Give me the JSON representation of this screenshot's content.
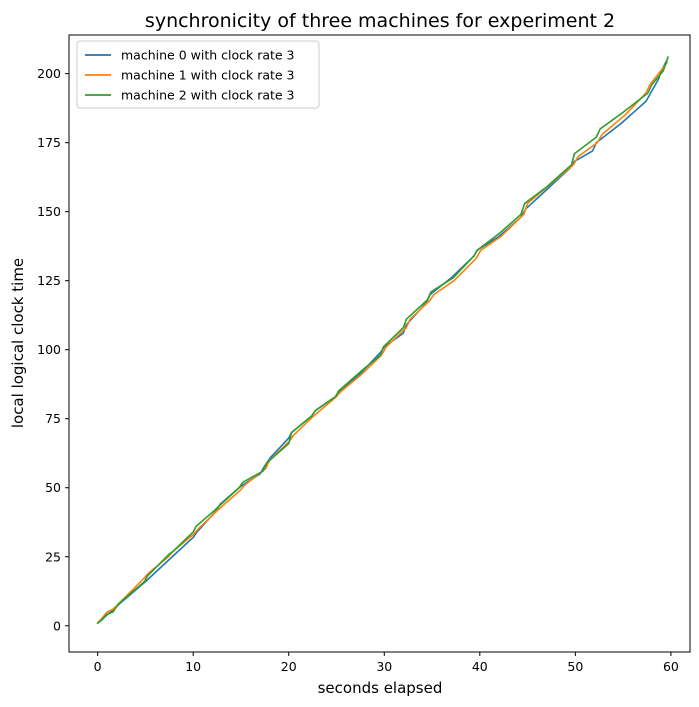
{
  "chart_data": {
    "type": "line",
    "title": "synchronicity of three machines for experiment 2",
    "xlabel": "seconds elapsed",
    "ylabel": "local logical clock time",
    "xlim": [
      -3,
      62
    ],
    "ylim": [
      -9.5,
      214
    ],
    "xticks": [
      0,
      10,
      20,
      30,
      40,
      50,
      60
    ],
    "yticks": [
      0,
      25,
      50,
      75,
      100,
      125,
      150,
      175,
      200
    ],
    "grid": false,
    "legend_position": "top-left",
    "series": [
      {
        "name": "machine 0 with clock rate 3",
        "color": "#1f77b4",
        "x": [
          0,
          0.4,
          1.0,
          1.7,
          2.3,
          5.0,
          7.5,
          7.8,
          10.0,
          10.4,
          12.5,
          12.8,
          14.8,
          15.2,
          17.0,
          17.5,
          18.1,
          20.0,
          20.3,
          22.4,
          22.8,
          24.9,
          25.3,
          27.4,
          29.6,
          30.0,
          32.0,
          32.3,
          34.4,
          34.8,
          37.0,
          39.4,
          39.7,
          42.0,
          44.3,
          44.8,
          47.0,
          49.5,
          49.8,
          51.8,
          52.2,
          54.8,
          57.4,
          58.7,
          59.0,
          59.6
        ],
        "y": [
          1,
          2,
          4,
          6,
          8,
          16,
          24,
          25,
          32,
          34,
          42,
          44,
          50,
          51,
          55,
          58,
          61,
          68,
          70,
          76,
          78,
          83,
          85,
          91,
          99,
          101,
          106,
          109,
          117,
          120,
          126,
          134,
          136,
          141,
          148,
          151,
          158,
          166,
          168,
          172,
          175,
          182,
          190,
          198,
          201,
          205
        ]
      },
      {
        "name": "machine 1 with clock rate 3",
        "color": "#ff7f0e",
        "x": [
          0,
          0.5,
          1.0,
          1.6,
          2.2,
          4.8,
          5.3,
          7.4,
          7.9,
          10.0,
          10.5,
          12.6,
          14.9,
          15.4,
          17.6,
          18.0,
          20.1,
          20.5,
          22.6,
          25.0,
          25.5,
          27.6,
          29.7,
          30.2,
          32.3,
          32.7,
          34.8,
          35.2,
          37.3,
          39.6,
          40.1,
          42.2,
          44.6,
          45.0,
          47.4,
          49.8,
          50.3,
          52.3,
          52.8,
          55.2,
          57.4,
          57.8,
          59.6
        ],
        "y": [
          1,
          3,
          5,
          6,
          8,
          17,
          19,
          25,
          27,
          33,
          35,
          42,
          49,
          51,
          57,
          60,
          67,
          69,
          76,
          83,
          85,
          91,
          98,
          101,
          108,
          111,
          118,
          120,
          125,
          133,
          136,
          141,
          149,
          153,
          160,
          167,
          170,
          175,
          178,
          185,
          193,
          196,
          204
        ]
      },
      {
        "name": "machine 2 with clock rate 3",
        "color": "#2ca02c",
        "x": [
          0,
          0.4,
          0.9,
          1.6,
          2.2,
          4.9,
          5.2,
          7.5,
          7.9,
          10.0,
          10.3,
          12.3,
          12.6,
          14.8,
          15.2,
          17.3,
          17.7,
          20.0,
          20.3,
          22.4,
          22.8,
          24.9,
          25.2,
          27.5,
          29.6,
          29.9,
          32.0,
          32.3,
          34.5,
          34.9,
          37.2,
          39.4,
          39.7,
          42.0,
          44.3,
          44.7,
          47.0,
          49.6,
          49.9,
          52.2,
          52.6,
          55.0,
          57.6,
          58.0,
          59.2,
          59.7
        ],
        "y": [
          1,
          2,
          4,
          5,
          8,
          16,
          18,
          26,
          27,
          34,
          36,
          42,
          43,
          50,
          52,
          56,
          59,
          66,
          70,
          76,
          78,
          83,
          85,
          92,
          98,
          101,
          108,
          111,
          118,
          121,
          126,
          134,
          136,
          142,
          149,
          153,
          159,
          167,
          171,
          177,
          180,
          186,
          193,
          196,
          201,
          206
        ]
      }
    ]
  }
}
